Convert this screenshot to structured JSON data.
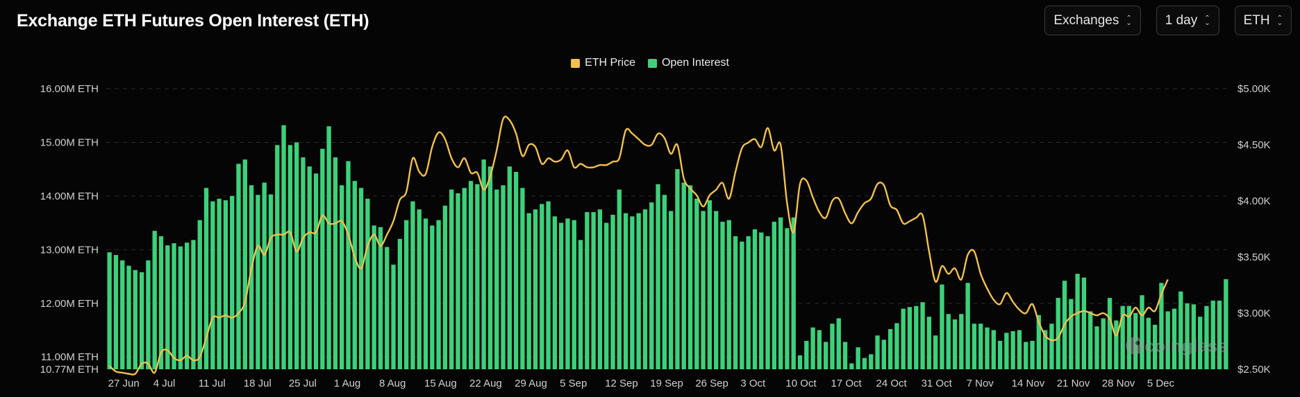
{
  "header": {
    "title": "Exchange ETH Futures Open Interest (ETH)",
    "selects": [
      {
        "label": "Exchanges"
      },
      {
        "label": "1 day"
      },
      {
        "label": "ETH"
      }
    ]
  },
  "colors": {
    "price": "#f2c14e",
    "oi": "#3cd17a",
    "grid": "#2a2a2a"
  },
  "watermark": "coinglass",
  "chart_data": {
    "type": "bar+line",
    "legend": [
      "ETH Price",
      "Open Interest"
    ],
    "legend_position": "top-center",
    "y_left": {
      "min": 10.77,
      "max": 16.0,
      "ticks": [
        16.0,
        15.0,
        14.0,
        13.0,
        12.0,
        11.0,
        10.77
      ],
      "labels": [
        "16.00M ETH",
        "15.00M ETH",
        "14.00M ETH",
        "13.00M ETH",
        "12.00M ETH",
        "11.00M ETH",
        "10.77M ETH"
      ]
    },
    "y_right": {
      "min": 2.5,
      "max": 5.0,
      "ticks": [
        5.0,
        4.5,
        4.0,
        3.5,
        3.0,
        2.5
      ],
      "labels": [
        "$5.00K",
        "$4.50K",
        "$4.00K",
        "$3.50K",
        "$3.00K",
        "$2.50K"
      ]
    },
    "x_ticks": [
      {
        "day": 0,
        "label": "27 Jun"
      },
      {
        "day": 7,
        "label": "4 Jul"
      },
      {
        "day": 14,
        "label": "11 Jul"
      },
      {
        "day": 21,
        "label": "18 Jul"
      },
      {
        "day": 28,
        "label": "25 Jul"
      },
      {
        "day": 35,
        "label": "1 Aug"
      },
      {
        "day": 42,
        "label": "8 Aug"
      },
      {
        "day": 49,
        "label": "15 Aug"
      },
      {
        "day": 56,
        "label": "22 Aug"
      },
      {
        "day": 63,
        "label": "29 Aug"
      },
      {
        "day": 70,
        "label": "5 Sep"
      },
      {
        "day": 77,
        "label": "12 Sep"
      },
      {
        "day": 84,
        "label": "19 Sep"
      },
      {
        "day": 91,
        "label": "26 Sep"
      },
      {
        "day": 98,
        "label": "3 Oct"
      },
      {
        "day": 105,
        "label": "10 Oct"
      },
      {
        "day": 112,
        "label": "17 Oct"
      },
      {
        "day": 119,
        "label": "24 Oct"
      },
      {
        "day": 126,
        "label": "31 Oct"
      },
      {
        "day": 133,
        "label": "7 Nov"
      },
      {
        "day": 140,
        "label": "14 Nov"
      },
      {
        "day": 147,
        "label": "21 Nov"
      },
      {
        "day": 154,
        "label": "28 Nov"
      },
      {
        "day": 161,
        "label": "5 Dec"
      }
    ],
    "series": [
      {
        "name": "Open Interest",
        "unit": "M ETH",
        "values": [
          12.95,
          12.9,
          12.8,
          12.7,
          12.62,
          12.58,
          12.8,
          13.35,
          13.25,
          13.08,
          13.12,
          13.06,
          13.13,
          13.18,
          13.55,
          14.15,
          13.9,
          13.95,
          13.92,
          14.0,
          14.6,
          14.68,
          14.2,
          14.02,
          14.25,
          14.03,
          14.95,
          15.32,
          14.95,
          15.0,
          14.72,
          14.55,
          14.42,
          14.88,
          15.3,
          14.72,
          14.2,
          14.65,
          14.28,
          14.15,
          13.95,
          13.45,
          13.42,
          13.05,
          12.72,
          13.2,
          13.55,
          13.9,
          13.75,
          13.58,
          13.45,
          13.55,
          13.82,
          14.12,
          14.05,
          14.15,
          14.28,
          14.22,
          14.68,
          14.55,
          14.12,
          14.2,
          14.55,
          14.45,
          14.15,
          13.68,
          13.75,
          13.85,
          13.9,
          13.62,
          13.5,
          13.58,
          13.55,
          13.18,
          13.7,
          13.7,
          13.75,
          13.5,
          13.65,
          14.12,
          13.68,
          13.62,
          13.68,
          13.75,
          13.88,
          14.22,
          14.02,
          13.72,
          14.5,
          14.25,
          14.2,
          13.95,
          13.72,
          13.92,
          13.72,
          13.52,
          13.55,
          13.25,
          13.15,
          13.25,
          13.38,
          13.32,
          13.25,
          13.52,
          13.6,
          13.4,
          13.6,
          11.03,
          11.3,
          11.55,
          11.5,
          11.28,
          11.62,
          11.72,
          11.28,
          10.88,
          11.18,
          10.98,
          11.05,
          11.4,
          11.32,
          11.52,
          11.63,
          11.9,
          11.93,
          11.95,
          12.02,
          11.75,
          11.4,
          12.35,
          11.8,
          11.7,
          11.8,
          12.38,
          11.62,
          11.62,
          11.55,
          11.5,
          11.3,
          11.45,
          11.48,
          11.5,
          11.28,
          11.3,
          11.78,
          11.5,
          11.62,
          12.1,
          12.42,
          12.08,
          12.55,
          12.48,
          11.85,
          11.57,
          11.72,
          12.1,
          11.68,
          11.95,
          11.95,
          11.82,
          12.15,
          11.73,
          11.6,
          12.38,
          11.85,
          11.9,
          12.22,
          12.0,
          11.98,
          11.75,
          11.95,
          12.05,
          12.05,
          12.45
        ],
        "color": "#3cd17a"
      },
      {
        "name": "ETH Price",
        "unit": "$K",
        "values": [
          2.53,
          2.48,
          2.47,
          2.46,
          2.46,
          2.55,
          2.55,
          2.47,
          2.65,
          2.67,
          2.6,
          2.58,
          2.62,
          2.58,
          2.61,
          2.78,
          2.96,
          2.96,
          2.98,
          2.96,
          3.0,
          3.1,
          3.4,
          3.6,
          3.52,
          3.67,
          3.7,
          3.7,
          3.72,
          3.55,
          3.67,
          3.72,
          3.72,
          3.87,
          3.8,
          3.8,
          3.82,
          3.7,
          3.5,
          3.4,
          3.6,
          3.7,
          3.6,
          3.7,
          3.82,
          4.01,
          4.08,
          4.38,
          4.26,
          4.24,
          4.48,
          4.61,
          4.55,
          4.38,
          4.3,
          4.38,
          4.25,
          4.25,
          4.1,
          4.22,
          4.45,
          4.73,
          4.72,
          4.6,
          4.4,
          4.5,
          4.48,
          4.33,
          4.38,
          4.35,
          4.37,
          4.45,
          4.3,
          4.33,
          4.3,
          4.3,
          4.32,
          4.32,
          4.35,
          4.38,
          4.63,
          4.6,
          4.55,
          4.5,
          4.5,
          4.6,
          4.56,
          4.42,
          4.5,
          4.2,
          4.11,
          4.05,
          3.95,
          4.05,
          4.1,
          4.16,
          4.02,
          4.26,
          4.47,
          4.52,
          4.55,
          4.48,
          4.65,
          4.45,
          4.5,
          3.98,
          3.72,
          4.15,
          4.18,
          4.03,
          3.9,
          3.85,
          4.0,
          4.02,
          3.89,
          3.8,
          3.9,
          3.98,
          4.02,
          4.15,
          4.14,
          3.96,
          3.92,
          3.8,
          3.82,
          3.85,
          3.87,
          3.55,
          3.28,
          3.42,
          3.35,
          3.4,
          3.3,
          3.52,
          3.55,
          3.35,
          3.22,
          3.12,
          3.08,
          3.18,
          3.1,
          3.03,
          3.0,
          3.08,
          2.92,
          2.8,
          2.76,
          2.78,
          2.9,
          2.97,
          3.0,
          3.02,
          3.0,
          2.98,
          3.0,
          2.95,
          2.8,
          2.98,
          2.97,
          3.05,
          2.98,
          3.05,
          3.02,
          3.17,
          3.3
        ],
        "color": "#f2c14e"
      }
    ]
  }
}
